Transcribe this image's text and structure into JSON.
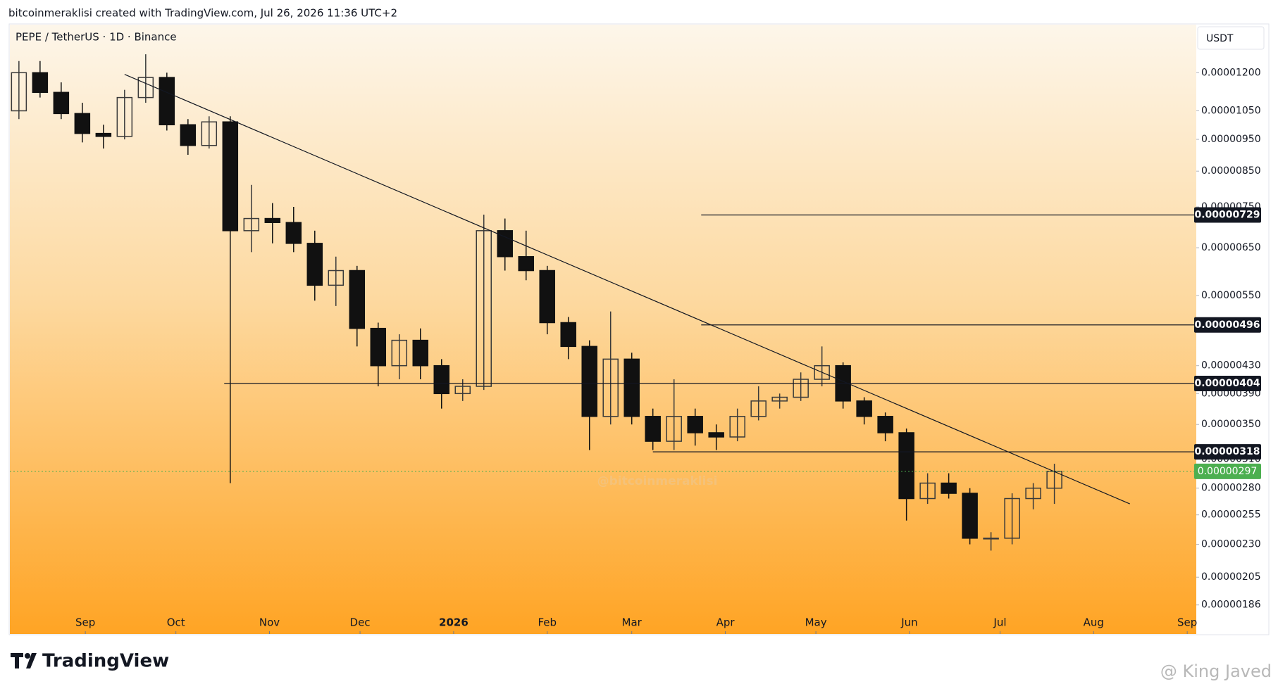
{
  "header": {
    "caption": "bitcoinmeraklisi created with TradingView.com, Jul 26, 2026 11:36 UTC+2"
  },
  "footer": {
    "brand": "TradingView",
    "credit": "@ King Javed"
  },
  "chart_data": {
    "type": "candlestick",
    "title": "PEPE / TetherUS · 1D · Binance",
    "currency": "USDT",
    "watermark": "@bitcoinmeraklisi",
    "log_scale": true,
    "grid": false,
    "up_color": "#3a3a3a",
    "down_color": "#111111",
    "xlim": [
      -8,
      385
    ],
    "ylim": [
      1.68e-06,
      1.42e-05
    ],
    "xticks": [
      {
        "value": 17,
        "label": "Sep"
      },
      {
        "value": 47,
        "label": "Oct"
      },
      {
        "value": 78,
        "label": "Nov"
      },
      {
        "value": 108,
        "label": "Dec"
      },
      {
        "value": 139,
        "label": "2026",
        "emphasis": true
      },
      {
        "value": 170,
        "label": "Feb"
      },
      {
        "value": 198,
        "label": "Mar"
      },
      {
        "value": 229,
        "label": "Apr"
      },
      {
        "value": 259,
        "label": "May"
      },
      {
        "value": 290,
        "label": "Jun"
      },
      {
        "value": 320,
        "label": "Jul"
      },
      {
        "value": 351,
        "label": "Aug"
      },
      {
        "value": 382,
        "label": "Sep"
      }
    ],
    "yticks": [
      {
        "value": 1.2e-05,
        "label": "0.00001200"
      },
      {
        "value": 1.05e-05,
        "label": "0.00001050"
      },
      {
        "value": 9.5e-06,
        "label": "0.00000950"
      },
      {
        "value": 8.5e-06,
        "label": "0.00000850"
      },
      {
        "value": 7.5e-06,
        "label": "0.00000750"
      },
      {
        "value": 6.5e-06,
        "label": "0.00000650"
      },
      {
        "value": 5.5e-06,
        "label": "0.00000550"
      },
      {
        "value": 4.3e-06,
        "label": "0.00000430"
      },
      {
        "value": 3.9e-06,
        "label": "0.00000390"
      },
      {
        "value": 3.5e-06,
        "label": "0.00000350"
      },
      {
        "value": 3.1e-06,
        "label": "0.00000310"
      },
      {
        "value": 2.8e-06,
        "label": "0.00000280"
      },
      {
        "value": 2.55e-06,
        "label": "0.00000255"
      },
      {
        "value": 2.3e-06,
        "label": "0.00000230"
      },
      {
        "value": 2.05e-06,
        "label": "0.00000205"
      },
      {
        "value": 1.86e-06,
        "label": "0.00000186"
      }
    ],
    "x": [
      -5,
      2,
      9,
      16,
      23,
      30,
      37,
      44,
      51,
      58,
      65,
      72,
      79,
      86,
      93,
      100,
      107,
      114,
      121,
      128,
      135,
      142,
      149,
      156,
      163,
      170,
      177,
      184,
      191,
      198,
      205,
      212,
      219,
      226,
      233,
      240,
      247,
      254,
      261,
      268,
      275,
      282,
      289,
      296,
      303,
      310,
      317,
      324,
      331,
      338
    ],
    "open": [
      1.05e-05,
      1.2e-05,
      1.12e-05,
      1.04e-05,
      9.7e-06,
      9.6e-06,
      1.1e-05,
      1.18e-05,
      1e-05,
      9.3e-06,
      1.01e-05,
      6.9e-06,
      7.2e-06,
      7.1e-06,
      6.6e-06,
      5.7e-06,
      6e-06,
      4.9e-06,
      4.3e-06,
      4.7e-06,
      4.3e-06,
      3.9e-06,
      4e-06,
      6.9e-06,
      6.3e-06,
      6e-06,
      5e-06,
      4.6e-06,
      3.6e-06,
      4.4e-06,
      3.6e-06,
      3.3e-06,
      3.6e-06,
      3.4e-06,
      3.35e-06,
      3.6e-06,
      3.8e-06,
      3.85e-06,
      4.1e-06,
      4.3e-06,
      3.8e-06,
      3.6e-06,
      3.4e-06,
      2.7e-06,
      2.85e-06,
      2.75e-06,
      2.35e-06,
      2.35e-06,
      2.7e-06,
      2.8e-06
    ],
    "high": [
      1.25e-05,
      1.25e-05,
      1.16e-05,
      1.08e-05,
      1e-05,
      1.13e-05,
      1.28e-05,
      1.2e-05,
      1.02e-05,
      1.03e-05,
      1.03e-05,
      8.1e-06,
      7.6e-06,
      7.5e-06,
      6.9e-06,
      6.3e-06,
      6.1e-06,
      5e-06,
      4.8e-06,
      4.9e-06,
      4.4e-06,
      4.1e-06,
      7.3e-06,
      7.2e-06,
      6.9e-06,
      6.1e-06,
      5.1e-06,
      4.7e-06,
      5.2e-06,
      4.5e-06,
      3.7e-06,
      4.1e-06,
      3.7e-06,
      3.5e-06,
      3.7e-06,
      4e-06,
      3.9e-06,
      4.2e-06,
      4.6e-06,
      4.35e-06,
      3.85e-06,
      3.65e-06,
      3.45e-06,
      2.95e-06,
      2.95e-06,
      2.8e-06,
      2.4e-06,
      2.75e-06,
      2.85e-06,
      3.05e-06
    ],
    "low": [
      1.02e-05,
      1.1e-05,
      1.02e-05,
      9.4e-06,
      9.2e-06,
      9.5e-06,
      1.08e-05,
      9.8e-06,
      9e-06,
      9.2e-06,
      2.85e-06,
      6.4e-06,
      6.6e-06,
      6.4e-06,
      5.4e-06,
      5.3e-06,
      4.6e-06,
      4e-06,
      4.1e-06,
      4.1e-06,
      3.7e-06,
      3.8e-06,
      3.95e-06,
      6e-06,
      5.8e-06,
      4.8e-06,
      4.4e-06,
      3.2e-06,
      3.5e-06,
      3.5e-06,
      3.2e-06,
      3.2e-06,
      3.25e-06,
      3.2e-06,
      3.3e-06,
      3.55e-06,
      3.7e-06,
      3.8e-06,
      4e-06,
      3.7e-06,
      3.5e-06,
      3.3e-06,
      2.5e-06,
      2.65e-06,
      2.7e-06,
      2.3e-06,
      2.25e-06,
      2.3e-06,
      2.6e-06,
      2.65e-06
    ],
    "close": [
      1.2e-05,
      1.12e-05,
      1.04e-05,
      9.7e-06,
      9.6e-06,
      1.1e-05,
      1.18e-05,
      1e-05,
      9.3e-06,
      1.01e-05,
      6.9e-06,
      7.2e-06,
      7.1e-06,
      6.6e-06,
      5.7e-06,
      6e-06,
      4.9e-06,
      4.3e-06,
      4.7e-06,
      4.3e-06,
      3.9e-06,
      4e-06,
      6.9e-06,
      6.3e-06,
      6e-06,
      5e-06,
      4.6e-06,
      3.6e-06,
      4.4e-06,
      3.6e-06,
      3.3e-06,
      3.6e-06,
      3.4e-06,
      3.35e-06,
      3.6e-06,
      3.8e-06,
      3.85e-06,
      4.1e-06,
      4.3e-06,
      3.8e-06,
      3.6e-06,
      3.4e-06,
      2.7e-06,
      2.85e-06,
      2.75e-06,
      2.35e-06,
      2.35e-06,
      2.7e-06,
      2.8e-06,
      2.97e-06
    ],
    "trendline": {
      "x": [
        30,
        363
      ],
      "values": [
        1.193e-05,
        2.65e-06
      ]
    },
    "levels": [
      {
        "value": 7.29e-06,
        "label": "0.00000729",
        "from": 221
      },
      {
        "value": 4.96e-06,
        "label": "0.00000496",
        "from": 221
      },
      {
        "value": 4.04e-06,
        "label": "0.00000404",
        "from": 63
      },
      {
        "value": 3.18e-06,
        "label": "0.00000318",
        "from": 205
      }
    ],
    "last_price": {
      "value": 2.97e-06,
      "label": "0.00000297",
      "color": "#4caf50"
    }
  }
}
